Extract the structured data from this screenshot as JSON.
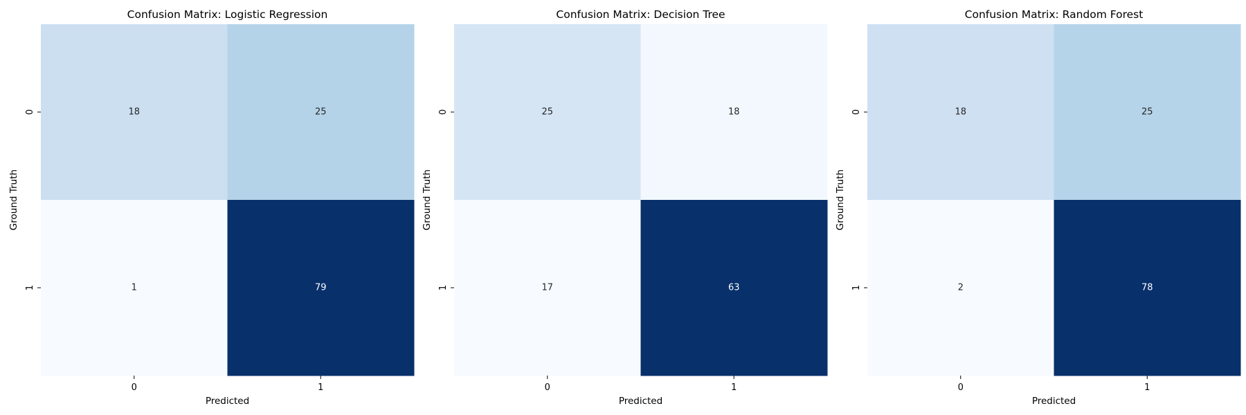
{
  "chart_data": [
    {
      "type": "heatmap",
      "title": "Confusion Matrix: Logistic Regression",
      "xlabel": "Predicted",
      "ylabel": "Ground Truth",
      "x_categories": [
        "0",
        "1"
      ],
      "y_categories": [
        "0",
        "1"
      ],
      "values": [
        [
          18,
          25
        ],
        [
          1,
          79
        ]
      ],
      "colormap": "Blues",
      "colorbar": false
    },
    {
      "type": "heatmap",
      "title": "Confusion Matrix: Decision Tree",
      "xlabel": "Predicted",
      "ylabel": "Ground Truth",
      "x_categories": [
        "0",
        "1"
      ],
      "y_categories": [
        "0",
        "1"
      ],
      "values": [
        [
          25,
          18
        ],
        [
          17,
          63
        ]
      ],
      "colormap": "Blues",
      "colorbar": false
    },
    {
      "type": "heatmap",
      "title": "Confusion Matrix: Random Forest",
      "xlabel": "Predicted",
      "ylabel": "Ground Truth",
      "x_categories": [
        "0",
        "1"
      ],
      "y_categories": [
        "0",
        "1"
      ],
      "values": [
        [
          18,
          25
        ],
        [
          2,
          78
        ]
      ],
      "colormap": "Blues",
      "colorbar": false
    }
  ]
}
